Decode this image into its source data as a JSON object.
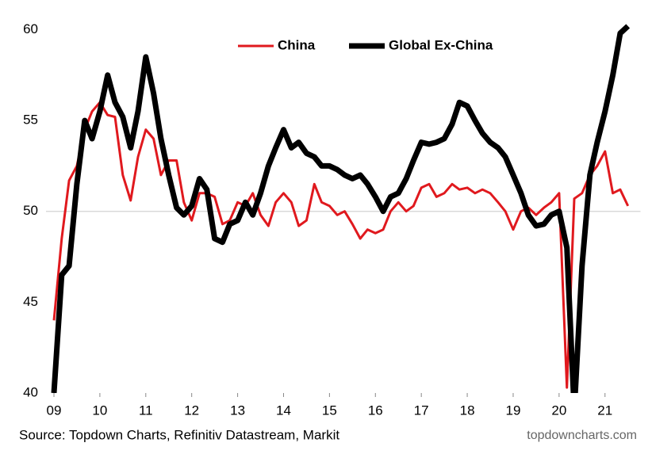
{
  "chart_data": {
    "type": "line",
    "legend": "top",
    "x": [
      2009,
      2009.17,
      2009.33,
      2009.5,
      2009.67,
      2009.83,
      2010,
      2010.17,
      2010.33,
      2010.5,
      2010.67,
      2010.83,
      2011,
      2011.17,
      2011.33,
      2011.5,
      2011.67,
      2011.83,
      2012,
      2012.17,
      2012.33,
      2012.5,
      2012.67,
      2012.83,
      2013,
      2013.17,
      2013.33,
      2013.5,
      2013.67,
      2013.83,
      2014,
      2014.17,
      2014.33,
      2014.5,
      2014.67,
      2014.83,
      2015,
      2015.17,
      2015.33,
      2015.5,
      2015.67,
      2015.83,
      2016,
      2016.17,
      2016.33,
      2016.5,
      2016.67,
      2016.83,
      2017,
      2017.17,
      2017.33,
      2017.5,
      2017.67,
      2017.83,
      2018,
      2018.17,
      2018.33,
      2018.5,
      2018.67,
      2018.83,
      2019,
      2019.17,
      2019.33,
      2019.5,
      2019.67,
      2019.83,
      2020,
      2020.17,
      2020.33,
      2020.5,
      2020.67,
      2020.83,
      2021,
      2021.17,
      2021.33,
      2021.5
    ],
    "series": [
      {
        "name": "China",
        "color": "#e0191e",
        "width": 3,
        "values": [
          44,
          48.5,
          51.7,
          52.5,
          54.5,
          55.5,
          56,
          55.3,
          55.2,
          52,
          50.6,
          53,
          54.5,
          54,
          52,
          52.8,
          52.8,
          50.5,
          49.5,
          51,
          51,
          50.8,
          49.3,
          49.5,
          50.5,
          50.3,
          51,
          49.8,
          49.2,
          50.5,
          51,
          50.5,
          49.2,
          49.5,
          51.5,
          50.5,
          50.3,
          49.8,
          50,
          49.3,
          48.5,
          49,
          48.8,
          49,
          50,
          50.5,
          50,
          50.3,
          51.3,
          51.5,
          50.8,
          51,
          51.5,
          51.2,
          51.3,
          51,
          51.2,
          51,
          50.5,
          50,
          49,
          50,
          50.2,
          49.8,
          50.2,
          50.5,
          51,
          40.3,
          50.7,
          51,
          52,
          52.5,
          53.3,
          51,
          51.2,
          50.3
        ]
      },
      {
        "name": "Global Ex-China",
        "color": "#000000",
        "width": 7,
        "values": [
          40,
          46.5,
          47,
          51.5,
          55,
          54,
          55.5,
          57.5,
          56,
          55.2,
          53.5,
          55.5,
          58.5,
          56.5,
          54,
          52,
          50.2,
          49.8,
          50.3,
          51.8,
          51.2,
          48.5,
          48.3,
          49.3,
          49.5,
          50.5,
          49.8,
          51,
          52.5,
          53.5,
          54.5,
          53.5,
          53.8,
          53.2,
          53,
          52.5,
          52.5,
          52.3,
          52,
          51.8,
          52,
          51.5,
          50.8,
          50,
          50.8,
          51,
          51.8,
          52.8,
          53.8,
          53.7,
          53.8,
          54,
          54.8,
          56,
          55.8,
          55,
          54.3,
          53.8,
          53.5,
          53,
          52,
          51,
          49.8,
          49.2,
          49.3,
          49.8,
          50,
          48,
          39,
          47,
          52,
          53.8,
          55.5,
          57.5,
          59.8,
          60.2
        ]
      }
    ],
    "xlim": [
      2009,
      2021.6
    ],
    "xticks": [
      {
        "value": 2009,
        "label": "09"
      },
      {
        "value": 2010,
        "label": "10"
      },
      {
        "value": 2011,
        "label": "11"
      },
      {
        "value": 2012,
        "label": "12"
      },
      {
        "value": 2013,
        "label": "13"
      },
      {
        "value": 2014,
        "label": "14"
      },
      {
        "value": 2015,
        "label": "15"
      },
      {
        "value": 2016,
        "label": "16"
      },
      {
        "value": 2017,
        "label": "17"
      },
      {
        "value": 2018,
        "label": "18"
      },
      {
        "value": 2019,
        "label": "19"
      },
      {
        "value": 2020,
        "label": "20"
      },
      {
        "value": 2021,
        "label": "21"
      }
    ],
    "ylim": [
      40,
      60.5
    ],
    "yticks": [
      40,
      45,
      50,
      55,
      60
    ],
    "reference_line": 50,
    "source": "Source: Topdown Charts, Refinitiv Datastream, Markit",
    "credit": "topdowncharts.com"
  }
}
